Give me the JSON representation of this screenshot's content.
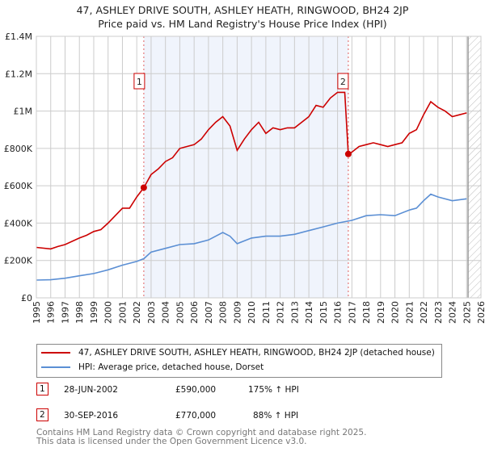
{
  "title_line1": "47, ASHLEY DRIVE SOUTH, ASHLEY HEATH, RINGWOOD, BH24 2JP",
  "title_line2": "Price paid vs. HM Land Registry's House Price Index (HPI)",
  "chart_data": {
    "type": "line",
    "xlim": [
      1995,
      2026
    ],
    "ylim": [
      0,
      1400000
    ],
    "x_ticks": [
      "1995",
      "1996",
      "1997",
      "1998",
      "1999",
      "2000",
      "2001",
      "2002",
      "2003",
      "2004",
      "2005",
      "2006",
      "2007",
      "2008",
      "2009",
      "2010",
      "2011",
      "2012",
      "2013",
      "2014",
      "2015",
      "2016",
      "2017",
      "2018",
      "2019",
      "2020",
      "2021",
      "2022",
      "2023",
      "2024",
      "2025",
      "2026"
    ],
    "y_ticks": [
      {
        "v": 0,
        "l": "£0"
      },
      {
        "v": 200000,
        "l": "£200K"
      },
      {
        "v": 400000,
        "l": "£400K"
      },
      {
        "v": 600000,
        "l": "£600K"
      },
      {
        "v": 800000,
        "l": "£800K"
      },
      {
        "v": 1000000,
        "l": "£1M"
      },
      {
        "v": 1200000,
        "l": "£1.2M"
      },
      {
        "v": 1400000,
        "l": "£1.4M"
      }
    ],
    "grid": true,
    "shaded_range": [
      2002.49,
      2016.75
    ],
    "future_hatch_from": 2025.1,
    "series": [
      {
        "name": "47, ASHLEY DRIVE SOUTH, ASHLEY HEATH, RINGWOOD, BH24 2JP (detached house)",
        "color": "#cc0000",
        "x": [
          1995,
          1996,
          1996.5,
          1997,
          1998,
          1998.5,
          1999,
          1999.5,
          2000,
          2000.5,
          2001,
          2001.5,
          2002,
          2002.49,
          2003,
          2003.5,
          2004,
          2004.5,
          2005,
          2005.5,
          2006,
          2006.5,
          2007,
          2007.5,
          2008,
          2008.5,
          2009,
          2009.5,
          2010,
          2010.5,
          2011,
          2011.5,
          2012,
          2012.5,
          2013,
          2013.5,
          2014,
          2014.5,
          2015,
          2015.5,
          2016,
          2016.5,
          2016.75,
          2017,
          2017.5,
          2018,
          2018.5,
          2019,
          2019.5,
          2020,
          2020.5,
          2021,
          2021.5,
          2022,
          2022.5,
          2023,
          2023.5,
          2024,
          2024.5,
          2025
        ],
        "y": [
          270000,
          262000,
          275000,
          285000,
          320000,
          335000,
          355000,
          365000,
          400000,
          440000,
          480000,
          480000,
          540000,
          590000,
          660000,
          690000,
          730000,
          750000,
          800000,
          810000,
          820000,
          850000,
          900000,
          940000,
          970000,
          920000,
          790000,
          850000,
          900000,
          940000,
          880000,
          910000,
          900000,
          910000,
          910000,
          940000,
          970000,
          1030000,
          1020000,
          1070000,
          1100000,
          1100000,
          770000,
          780000,
          810000,
          820000,
          830000,
          820000,
          810000,
          820000,
          830000,
          880000,
          900000,
          980000,
          1050000,
          1020000,
          1000000,
          970000,
          980000,
          990000
        ]
      },
      {
        "name": "HPI: Average price, detached house, Dorset",
        "color": "#5b8fd4",
        "x": [
          1995,
          1996,
          1997,
          1998,
          1999,
          2000,
          2001,
          2002,
          2002.5,
          2003,
          2004,
          2005,
          2006,
          2007,
          2008,
          2008.5,
          2009,
          2010,
          2011,
          2012,
          2013,
          2014,
          2015,
          2016,
          2017,
          2018,
          2019,
          2020,
          2021,
          2021.5,
          2022,
          2022.5,
          2023,
          2024,
          2025
        ],
        "y": [
          95000,
          97000,
          105000,
          118000,
          130000,
          150000,
          175000,
          195000,
          210000,
          245000,
          265000,
          285000,
          290000,
          310000,
          350000,
          330000,
          290000,
          320000,
          330000,
          330000,
          340000,
          360000,
          380000,
          400000,
          415000,
          440000,
          445000,
          440000,
          470000,
          480000,
          520000,
          555000,
          540000,
          520000,
          530000
        ]
      }
    ],
    "sales": [
      {
        "label": "1",
        "x": 2002.49,
        "y": 590000
      },
      {
        "label": "2",
        "x": 2016.75,
        "y": 770000
      }
    ]
  },
  "legend": {
    "red": "47, ASHLEY DRIVE SOUTH, ASHLEY HEATH, RINGWOOD, BH24 2JP (detached house)",
    "blue": "HPI: Average price, detached house, Dorset"
  },
  "transactions": [
    {
      "num": "1",
      "date": "28-JUN-2002",
      "price": "£590,000",
      "hpi": "175% ↑ HPI"
    },
    {
      "num": "2",
      "date": "30-SEP-2016",
      "price": "£770,000",
      "hpi": "88% ↑ HPI"
    }
  ],
  "footer_line1": "Contains HM Land Registry data © Crown copyright and database right 2025.",
  "footer_line2": "This data is licensed under the Open Government Licence v3.0."
}
